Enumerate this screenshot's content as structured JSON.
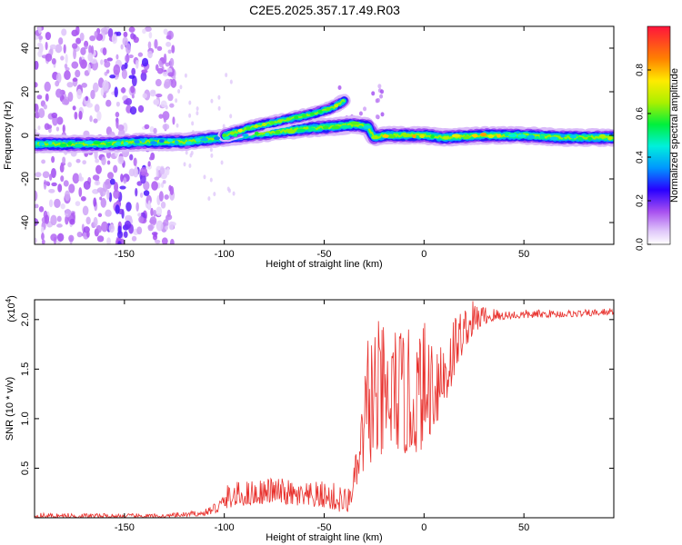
{
  "figure_title": "C2E5.2025.357.17.49.R03",
  "colors": {
    "snr_line": "#e8302c",
    "axis": "#000000",
    "ridge_core": "#ff2020"
  },
  "chart_data": [
    {
      "type": "heatmap",
      "name": "spectrogram",
      "xlabel": "Height of straight line (km)",
      "ylabel": "Frequency (Hz)",
      "xlim": [
        -195,
        95
      ],
      "ylim": [
        -50,
        50
      ],
      "xticks": [
        -150,
        -100,
        -50,
        0,
        50
      ],
      "xtick_labels": [
        "-150",
        "-100",
        "-50",
        "0",
        "50"
      ],
      "yticks": [
        -40,
        -20,
        0,
        20,
        40
      ],
      "ytick_labels": [
        "-40",
        "-20",
        "0",
        "20",
        "40"
      ],
      "colorbar": {
        "label": "Normalized spectral amplitude",
        "range": [
          0,
          1
        ],
        "ticks": [
          0.0,
          0.2,
          0.4,
          0.6,
          0.8
        ],
        "tick_labels": [
          "0.0",
          "0.2",
          "0.4",
          "0.6",
          "0.8"
        ]
      },
      "ridge": {
        "x": [
          -195,
          -180,
          -160,
          -140,
          -120,
          -100,
          -80,
          -60,
          -45,
          -35,
          -28,
          -25,
          -20,
          -10,
          0,
          10,
          30,
          50,
          70,
          95
        ],
        "freq": [
          -4,
          -4,
          -4,
          -3,
          -3,
          -1,
          1,
          3,
          4,
          5,
          4,
          -1,
          0,
          0,
          0,
          -1,
          0,
          0,
          -1,
          -1
        ],
        "amplitude": [
          0.45,
          0.5,
          0.55,
          0.45,
          0.4,
          0.45,
          0.55,
          0.6,
          0.55,
          0.6,
          0.5,
          0.6,
          0.75,
          0.7,
          0.8,
          0.6,
          0.9,
          0.45,
          0.45,
          0.7
        ]
      },
      "upper_branch": {
        "x": [
          -100,
          -85,
          -70,
          -55,
          -45,
          -40
        ],
        "freq": [
          0,
          4,
          7,
          10,
          13,
          16
        ]
      }
    },
    {
      "type": "line",
      "name": "snr",
      "xlabel": "Height of straight line (km)",
      "ylabel": "SNR (10 * v/v)",
      "y_scale_label_prefix": "(x10",
      "y_scale_label_exp": "4",
      "y_scale_label_suffix": ")",
      "xlim": [
        -195,
        95
      ],
      "ylim": [
        0,
        2.2
      ],
      "xticks": [
        -150,
        -100,
        -50,
        0,
        50
      ],
      "xtick_labels": [
        "-150",
        "-100",
        "-50",
        "0",
        "50"
      ],
      "yticks": [
        0.5,
        1.0,
        1.5,
        2.0
      ],
      "ytick_labels": [
        "0.5",
        "1.0",
        "1.5",
        "2.0"
      ],
      "envelope": {
        "x": [
          -195,
          -130,
          -110,
          -102,
          -98,
          -90,
          -75,
          -60,
          -50,
          -42,
          -38,
          -33,
          -28,
          -25,
          -22,
          -15,
          -8,
          0,
          5,
          10,
          15,
          20,
          25,
          30,
          40,
          60,
          80,
          95
        ],
        "base": [
          0.0,
          0.0,
          0.02,
          0.05,
          0.1,
          0.12,
          0.15,
          0.1,
          0.1,
          0.05,
          0.05,
          0.35,
          0.5,
          0.6,
          0.55,
          0.7,
          0.6,
          0.7,
          0.9,
          1.05,
          1.4,
          1.7,
          1.85,
          1.95,
          2.0,
          2.02,
          2.03,
          2.05
        ],
        "top": [
          0.05,
          0.04,
          0.08,
          0.22,
          0.35,
          0.38,
          0.42,
          0.35,
          0.38,
          0.35,
          0.3,
          0.75,
          1.95,
          2.1,
          1.95,
          2.0,
          1.9,
          2.0,
          2.05,
          2.05,
          2.1,
          2.15,
          2.2,
          2.15,
          2.1,
          2.1,
          2.1,
          2.12
        ]
      }
    }
  ]
}
